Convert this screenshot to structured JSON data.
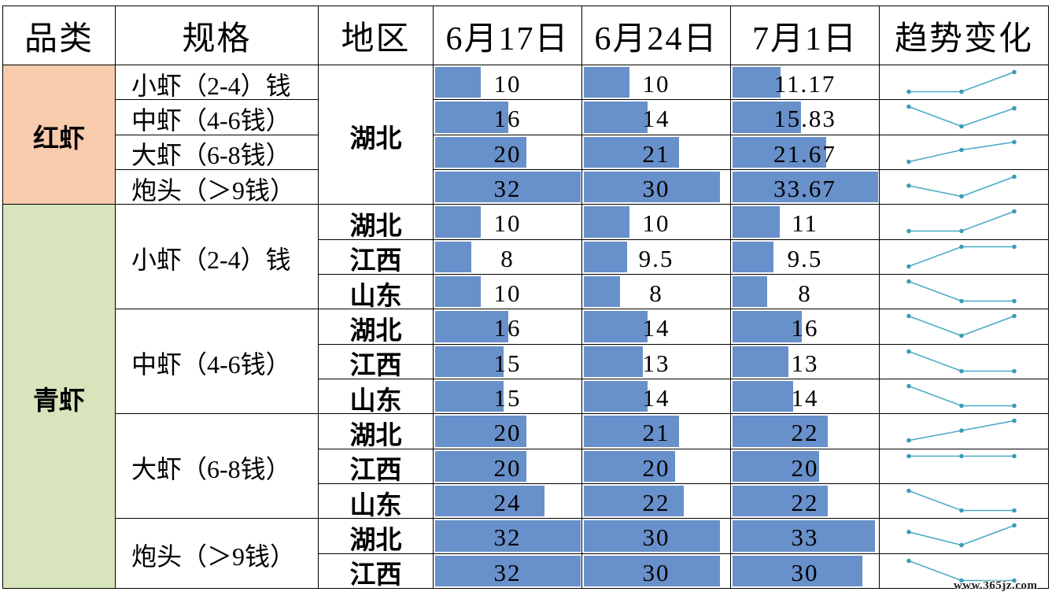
{
  "colors": {
    "red_shrimp_bg": "#F8CBAD",
    "green_shrimp_bg": "#D8E4BC",
    "data_bar": "#6890CA",
    "sparkline_line": "#4BACC6",
    "sparkline_marker": "#3C9BB4",
    "grid_line": "#000000"
  },
  "chart_data": {
    "type": "table",
    "trend_type": "line",
    "columns": [
      "品类",
      "规格",
      "地区",
      "6月17日",
      "6月24日",
      "7月1日",
      "趋势变化"
    ],
    "rows": [
      {
        "category": "红虾",
        "spec": "小虾（2-4）钱",
        "region": "湖北",
        "values": [
          10,
          10,
          11.17
        ]
      },
      {
        "spec": "中虾（4-6钱）",
        "values": [
          16,
          14,
          15.83
        ]
      },
      {
        "spec": "大虾（6-8钱）",
        "values": [
          20,
          21,
          21.67
        ]
      },
      {
        "spec": "炮头（＞9钱）",
        "values": [
          32,
          30,
          33.67
        ]
      },
      {
        "category": "青虾",
        "spec": "小虾（2-4）钱",
        "region": "湖北",
        "values": [
          10,
          10,
          11
        ]
      },
      {
        "region": "江西",
        "values": [
          8,
          9.5,
          9.5
        ]
      },
      {
        "region": "山东",
        "values": [
          10,
          8,
          8
        ]
      },
      {
        "spec": "中虾（4-6钱）",
        "region": "湖北",
        "values": [
          16,
          14,
          16
        ]
      },
      {
        "region": "江西",
        "values": [
          15,
          13,
          13
        ]
      },
      {
        "region": "山东",
        "values": [
          15,
          14,
          14
        ]
      },
      {
        "spec": "大虾（6-8钱）",
        "region": "湖北",
        "values": [
          20,
          21,
          22
        ]
      },
      {
        "region": "江西",
        "values": [
          20,
          20,
          20
        ]
      },
      {
        "region": "山东",
        "values": [
          24,
          22,
          22
        ]
      },
      {
        "spec": "炮头（＞9钱）",
        "region": "湖北",
        "values": [
          32,
          30,
          33
        ]
      },
      {
        "region": "江西",
        "values": [
          32,
          30,
          30
        ]
      }
    ]
  },
  "watermark": "www.365jz.com"
}
